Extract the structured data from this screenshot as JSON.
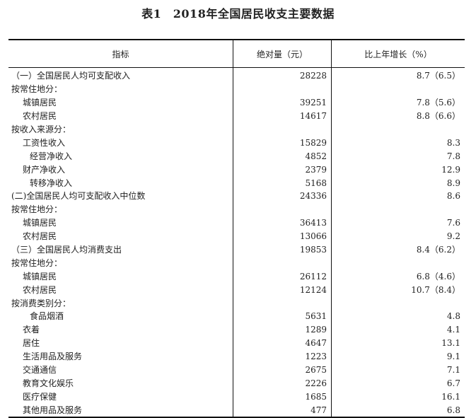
{
  "title": "表1　2018年全国居民收支主要数据",
  "headers": [
    "指标",
    "绝对量（元）",
    "比上年增长（%）"
  ],
  "rows": [
    {
      "label": "（一）全国居民人均可支配收入",
      "indent": 0,
      "value": "28228",
      "growth": "8.7（6.5）"
    },
    {
      "label": "按常住地分：",
      "indent": 0,
      "value": "",
      "growth": ""
    },
    {
      "label": "城镇居民",
      "indent": 1,
      "value": "39251",
      "growth": "7.8（5.6）"
    },
    {
      "label": "农村居民",
      "indent": 1,
      "value": "14617",
      "growth": "8.8（6.6）"
    },
    {
      "label": "按收入来源分：",
      "indent": 0,
      "value": "",
      "growth": ""
    },
    {
      "label": "工资性收入",
      "indent": 1,
      "value": "15829",
      "growth": "8.3"
    },
    {
      "label": "经营净收入",
      "indent": 2,
      "value": "4852",
      "growth": "7.8"
    },
    {
      "label": "财产净收入",
      "indent": 1,
      "value": "2379",
      "growth": "12.9"
    },
    {
      "label": "转移净收入",
      "indent": 2,
      "value": "5168",
      "growth": "8.9"
    },
    {
      "label": "(二)全国居民人均可支配收入中位数",
      "indent": 0,
      "value": "24336",
      "growth": "8.6"
    },
    {
      "label": "按常住地分：",
      "indent": 0,
      "value": "",
      "growth": ""
    },
    {
      "label": "城镇居民",
      "indent": 1,
      "value": "36413",
      "growth": "7.6"
    },
    {
      "label": "农村居民",
      "indent": 1,
      "value": "13066",
      "growth": "9.2"
    },
    {
      "label": "（三）全国居民人均消费支出",
      "indent": 0,
      "value": "19853",
      "growth": "8.4（6.2）"
    },
    {
      "label": "按常住地分：",
      "indent": 0,
      "value": "",
      "growth": ""
    },
    {
      "label": "城镇居民",
      "indent": 1,
      "value": "26112",
      "growth": "6.8（4.6）"
    },
    {
      "label": "农村居民",
      "indent": 1,
      "value": "12124",
      "growth": "10.7（8.4）"
    },
    {
      "label": "按消费类别分：",
      "indent": 0,
      "value": "",
      "growth": ""
    },
    {
      "label": "食品烟酒",
      "indent": 2,
      "value": "5631",
      "growth": "4.8"
    },
    {
      "label": "衣着",
      "indent": 1,
      "value": "1289",
      "growth": "4.1"
    },
    {
      "label": "居住",
      "indent": 1,
      "value": "4647",
      "growth": "13.1"
    },
    {
      "label": "生活用品及服务",
      "indent": 1,
      "value": "1223",
      "growth": "9.1"
    },
    {
      "label": "交通通信",
      "indent": 1,
      "value": "2675",
      "growth": "7.1"
    },
    {
      "label": "教育文化娱乐",
      "indent": 1,
      "value": "2226",
      "growth": "6.7"
    },
    {
      "label": "医疗保健",
      "indent": 1,
      "value": "1685",
      "growth": "16.1"
    },
    {
      "label": "其他用品及服务",
      "indent": 1,
      "value": "477",
      "growth": "6.8"
    }
  ]
}
